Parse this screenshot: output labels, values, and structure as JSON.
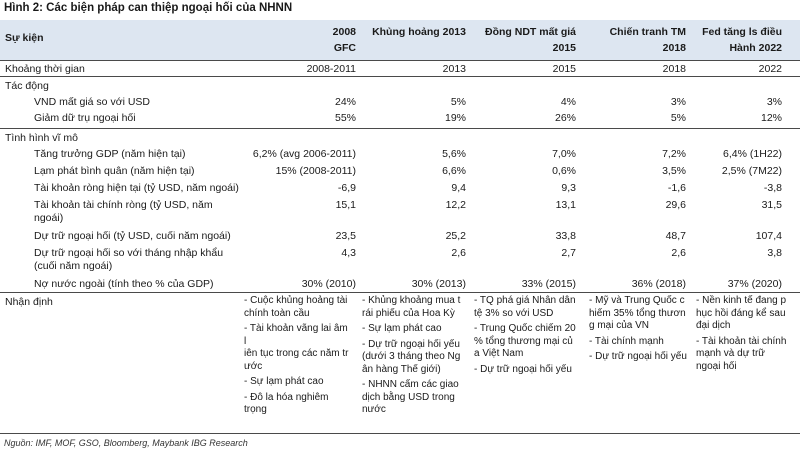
{
  "title": "Hình 2: Các biện pháp can thiệp ngoại hối của NHNN",
  "header": {
    "label": "Sự kiện",
    "columns": [
      {
        "line1": "2008",
        "line2": "GFC"
      },
      {
        "line1": "Khủng hoảng 2013",
        "line2": ""
      },
      {
        "line1": "Đồng NDT mất giá",
        "line2": "2015"
      },
      {
        "line1": "Chiến tranh TM",
        "line2": "2018"
      },
      {
        "line1": "Fed tăng ls điều",
        "line2": "Hành 2022"
      }
    ]
  },
  "period": {
    "label": "Khoảng thời gian",
    "values": [
      "2008-2011",
      "2013",
      "2015",
      "2018",
      "2022"
    ]
  },
  "impact": {
    "label": "Tác động",
    "rows": [
      {
        "label": "VND mất giá so với USD",
        "values": [
          "24%",
          "5%",
          "4%",
          "3%",
          "3%"
        ]
      },
      {
        "label": "Giảm dữ trụ ngoại hối",
        "values": [
          "55%",
          "19%",
          "26%",
          "5%",
          "12%"
        ]
      }
    ]
  },
  "macro": {
    "label": "Tình hình vĩ mô",
    "rows": [
      {
        "label": "Tăng trưởng GDP (năm hiện tại)",
        "label2": "",
        "values": [
          "6,2% (avg 2006-2011)",
          "5,6%",
          "7,0%",
          "7,2%",
          "6,4% (1H22)"
        ]
      },
      {
        "label": "Lạm phát bình quân (năm hiện tại)",
        "label2": "",
        "values": [
          "15% (2008-2011)",
          "6,6%",
          "0,6%",
          "3,5%",
          "2,5% (7M22)"
        ]
      },
      {
        "label": "Tài khoản ròng hiện tại (tỷ USD, năm ngoái)",
        "label2": "",
        "values": [
          "-6,9",
          "9,4",
          "9,3",
          "-1,6",
          "-3,8"
        ]
      },
      {
        "label": "Tài khoản tài chính ròng (tỷ USD, năm",
        "label2": "ngoái)",
        "values": [
          "15,1",
          "12,2",
          "13,1",
          "29,6",
          "31,5"
        ]
      },
      {
        "label": "Dự trữ ngoại hối (tỷ USD, cuối năm ngoái)",
        "label2": "",
        "values": [
          "23,5",
          "25,2",
          "33,8",
          "48,7",
          "107,4"
        ]
      },
      {
        "label": "Dự trữ ngoại hối so với tháng nhập khẩu",
        "label2": "(cuối năm ngoái)",
        "values": [
          "4,3",
          "2,6",
          "2,7",
          "2,6",
          "3,8"
        ]
      },
      {
        "label": "Nợ nước ngoài (tính theo % của GDP)",
        "label2": "",
        "values": [
          "30% (2010)",
          "30% (2013)",
          "33% (2015)",
          "36% (2018)",
          "37% (2020)"
        ]
      }
    ]
  },
  "assessment": {
    "label": "Nhận định",
    "columns": [
      [
        "- Cuộc khủng hoảng tài\nchính toàn cầu",
        "- Tài khoản vãng lai âm l\niên tục trong các năm tr\nước",
        "- Sự lạm phát cao",
        "- Đô la hóa nghiêm\ntrọng"
      ],
      [
        "- Khủng khoảng mua t\nrái phiếu của Hoa Kỳ",
        "- Sự lạm phát cao",
        "- Dự trữ ngoại hối yếu\n(dưới 3 tháng theo Ng\nân hàng Thế giới)",
        "- NHNN cấm các giao\ndịch bằng USD trong\nnước"
      ],
      [
        "- TQ phá giá Nhân dân\ntệ 3% so với USD",
        "- Trung Quốc chiếm 20\n% tổng thương mại củ\na Việt Nam",
        "- Dự trữ ngoại hối yếu"
      ],
      [
        "- Mỹ và Trung Quốc c\nhiếm 35% tổng thươn\ng mại của VN",
        "- Tài chính mạnh",
        "- Dự trữ ngoại hối yếu"
      ],
      [
        "- Nền kinh tế đang p\nhục hồi đáng kể sau\nđại dịch",
        "- Tài khoản tài chính\nmạnh và dự trữ\nngoại hối"
      ]
    ]
  },
  "source": "Nguồn: IMF, MOF, GSO, Bloomberg, Maybank IBG Research",
  "colors": {
    "header_bg": "#dde6f1",
    "rule": "#4a4a4a"
  }
}
